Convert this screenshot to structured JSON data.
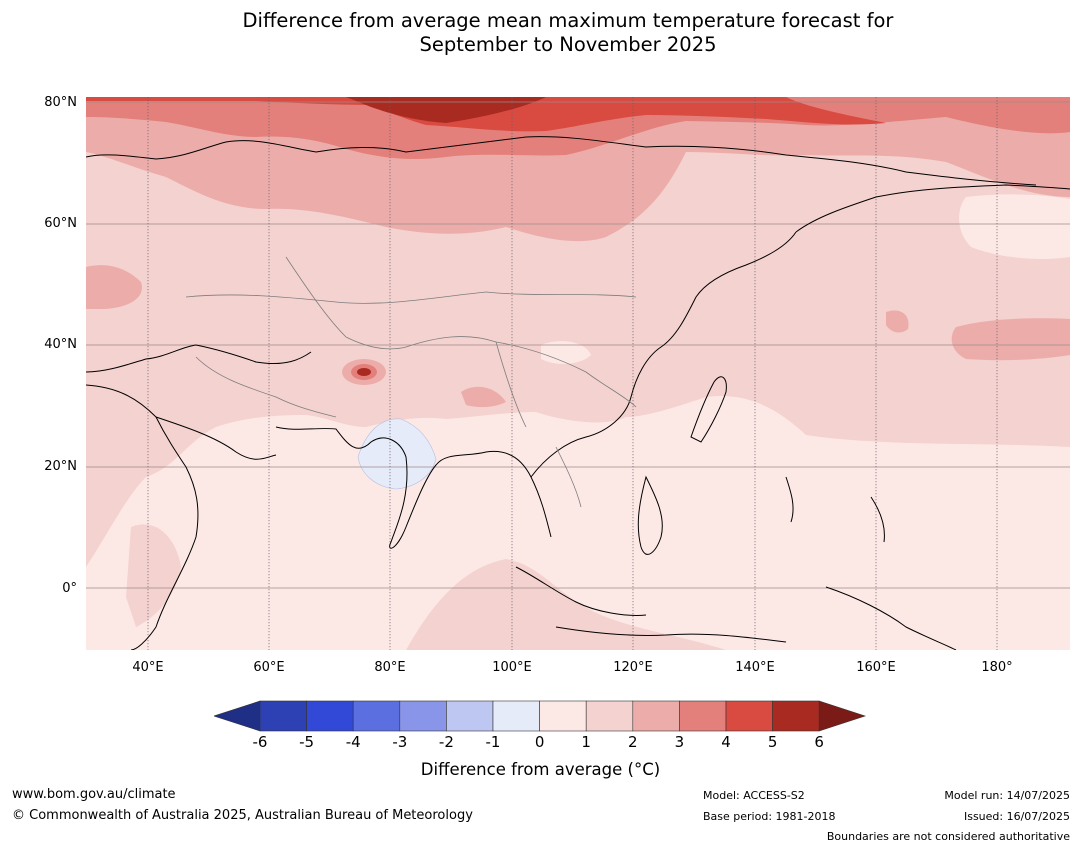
{
  "title": {
    "line1": "Difference from average mean maximum temperature forecast for",
    "line2": "September to November 2025"
  },
  "map": {
    "lat_labels": [
      "80°N",
      "60°N",
      "40°N",
      "20°N",
      "0°"
    ],
    "lon_labels": [
      "40°E",
      "60°E",
      "80°E",
      "100°E",
      "120°E",
      "140°E",
      "160°E",
      "180°"
    ]
  },
  "legend": {
    "title": "Difference from average ( $^\\circ$C)",
    "title_display": "Difference from average (°C)",
    "ticks": [
      "-6",
      "-5",
      "-4",
      "-3",
      "-2",
      "-1",
      "0",
      "1",
      "2",
      "3",
      "4",
      "5",
      "6"
    ],
    "colors": [
      "#1f2f86",
      "#2d40b4",
      "#3249d8",
      "#5c6fe0",
      "#8895e8",
      "#bec6f2",
      "#e6ebfa",
      "#fce9e6",
      "#f4d2cf",
      "#ecadaa",
      "#e4807b",
      "#d94a40",
      "#a82a21",
      "#7a1b17"
    ]
  },
  "footer": {
    "url": "www.bom.gov.au/climate",
    "copyright": "© Commonwealth of Australia 2025, Australian Bureau of Meteorology",
    "model": "Model: ACCESS-S2",
    "base_period": "Base period: 1981-2018",
    "model_run": "Model run: 14/07/2025",
    "issued": "Issued: 16/07/2025",
    "boundaries": "Boundaries are not considered authoritative"
  }
}
